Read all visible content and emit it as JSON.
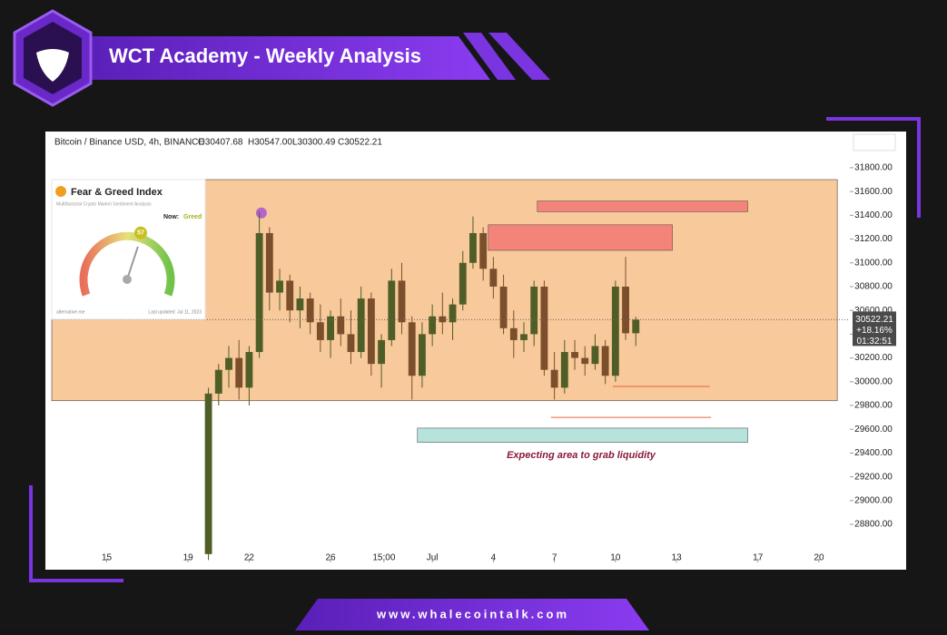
{
  "header": {
    "title": "WCT Academy - Weekly Analysis"
  },
  "footer": {
    "url": "www.whalecointalk.com"
  },
  "fear_greed": {
    "title": "Fear & Greed Index",
    "subtitle": "Multifactorial Crypto Market Sentiment Analysis",
    "now_label": "Now:",
    "status": "Greed",
    "value": 57,
    "source": "alternative.me",
    "updated": "Last updated: Jul 11, 2023"
  },
  "chart_data": {
    "type": "candlestick",
    "legend": "Bitcoin / Binance USD, 4h, BINANCE",
    "ohlc_labels": [
      "O30407.68",
      "H30547.00",
      "L30300.49",
      "C30522.21"
    ],
    "price_tag": {
      "change": "+18.16%",
      "countdown": "01:32:51"
    },
    "annotation": "Expecting area to grab liquidity",
    "up_color": "#4f5e27",
    "down_color": "#7b4f2c",
    "xlim": [
      12.3,
      51.25
    ],
    "ylim": [
      28480,
      31990
    ],
    "xticks": [
      {
        "value": 15,
        "label": "15"
      },
      {
        "value": 19,
        "label": "19"
      },
      {
        "value": 22,
        "label": "22"
      },
      {
        "value": 26,
        "label": "26"
      },
      {
        "value": 28.625,
        "label": "15:00"
      },
      {
        "value": 31,
        "label": "Jul"
      },
      {
        "value": 34,
        "label": "4"
      },
      {
        "value": 37,
        "label": "7"
      },
      {
        "value": 40,
        "label": "10"
      },
      {
        "value": 43,
        "label": "13"
      },
      {
        "value": 47,
        "label": "17"
      },
      {
        "value": 50,
        "label": "20"
      }
    ],
    "yticks": [
      {
        "value": 28800,
        "label": "28800.00"
      },
      {
        "value": 29000,
        "label": "29000.00"
      },
      {
        "value": 29200,
        "label": "29200.00"
      },
      {
        "value": 29400,
        "label": "29400.00"
      },
      {
        "value": 29600,
        "label": "29600.00"
      },
      {
        "value": 29800,
        "label": "29800.00"
      },
      {
        "value": 30000,
        "label": "30000.00"
      },
      {
        "value": 30200,
        "label": "30200.00"
      },
      {
        "value": 30400,
        "label": "30400.00"
      },
      {
        "value": 30600,
        "label": "30600.00"
      },
      {
        "value": 30800,
        "label": "30800.00"
      },
      {
        "value": 31000,
        "label": "31000.00"
      },
      {
        "value": 31200,
        "label": "31200.00"
      },
      {
        "value": 31400,
        "label": "31400.00"
      },
      {
        "value": 31600,
        "label": "31600.00"
      },
      {
        "value": 31800,
        "label": "31800.00"
      }
    ],
    "x": [
      20,
      20.5,
      21,
      21.5,
      22,
      22.5,
      23,
      23.5,
      24,
      24.5,
      25,
      25.5,
      26,
      26.5,
      27,
      27.5,
      28,
      28.5,
      29,
      29.5,
      30,
      30.5,
      31,
      31.5,
      32,
      32.5,
      33,
      33.5,
      34,
      34.5,
      35,
      35.5,
      36,
      36.5,
      37,
      37.5,
      38,
      38.5,
      39,
      39.5,
      40,
      40.5,
      41
    ],
    "open": [
      28550,
      29900,
      30100,
      30200,
      29950,
      30250,
      31250,
      30750,
      30850,
      30600,
      30700,
      30500,
      30350,
      30550,
      30400,
      30250,
      30700,
      30150,
      30350,
      30850,
      30500,
      30050,
      30400,
      30550,
      30500,
      30650,
      31000,
      31250,
      30950,
      30800,
      30450,
      30350,
      30400,
      30800,
      30100,
      29950,
      30250,
      30200,
      30150,
      30300,
      30050,
      30800,
      30407.68
    ],
    "high": [
      29950,
      30150,
      30300,
      30350,
      30300,
      31430,
      31300,
      30950,
      30900,
      30800,
      30750,
      30650,
      30600,
      30700,
      30600,
      30800,
      30750,
      30400,
      30950,
      31000,
      30550,
      30500,
      30650,
      30750,
      30700,
      31100,
      31390,
      31300,
      31050,
      30900,
      30600,
      30500,
      30850,
      30850,
      30250,
      30350,
      30350,
      30300,
      30400,
      30350,
      30850,
      31050,
      30547.0
    ],
    "low": [
      28500,
      29800,
      29950,
      29850,
      29800,
      30200,
      30600,
      30600,
      30500,
      30450,
      30400,
      30250,
      30200,
      30300,
      30150,
      30200,
      30050,
      29950,
      30300,
      30400,
      29850,
      29950,
      30300,
      30400,
      30350,
      30600,
      30950,
      30850,
      30700,
      30400,
      30200,
      30250,
      30300,
      30050,
      29850,
      29900,
      30100,
      30050,
      30100,
      29980,
      30000,
      30350,
      30300.49
    ],
    "close": [
      29900,
      30100,
      30200,
      29950,
      30250,
      31250,
      30750,
      30850,
      30600,
      30700,
      30500,
      30350,
      30550,
      30400,
      30250,
      30700,
      30150,
      30350,
      30850,
      30500,
      30050,
      30400,
      30550,
      30500,
      30650,
      31000,
      31250,
      30950,
      30800,
      30450,
      30350,
      30400,
      30800,
      30100,
      29950,
      30250,
      30200,
      30150,
      30300,
      30050,
      30800,
      30407.68,
      30522.21
    ],
    "zones": [
      {
        "x": [
          12.3,
          50.9
        ],
        "y": [
          29840,
          31700
        ],
        "color": "#f8c99a"
      },
      {
        "x": [
          36.16,
          46.5
        ],
        "y": [
          31430,
          31520
        ],
        "color": "#f4837a"
      },
      {
        "x": [
          33.75,
          42.8
        ],
        "y": [
          31105,
          31320
        ],
        "color": "#f4837a"
      },
      {
        "x": [
          30.27,
          46.5
        ],
        "y": [
          29490,
          29610
        ],
        "color": "#b7e3dc"
      }
    ],
    "levels": [
      {
        "x": [
          39.87,
          44.64
        ],
        "y": 29960,
        "color": "#e8643c"
      },
      {
        "x": [
          36.83,
          44.7
        ],
        "y": 29700,
        "color": "#e8643c"
      }
    ],
    "marker": {
      "x": 22.6,
      "y": 31420,
      "color": "#b565c8"
    }
  }
}
